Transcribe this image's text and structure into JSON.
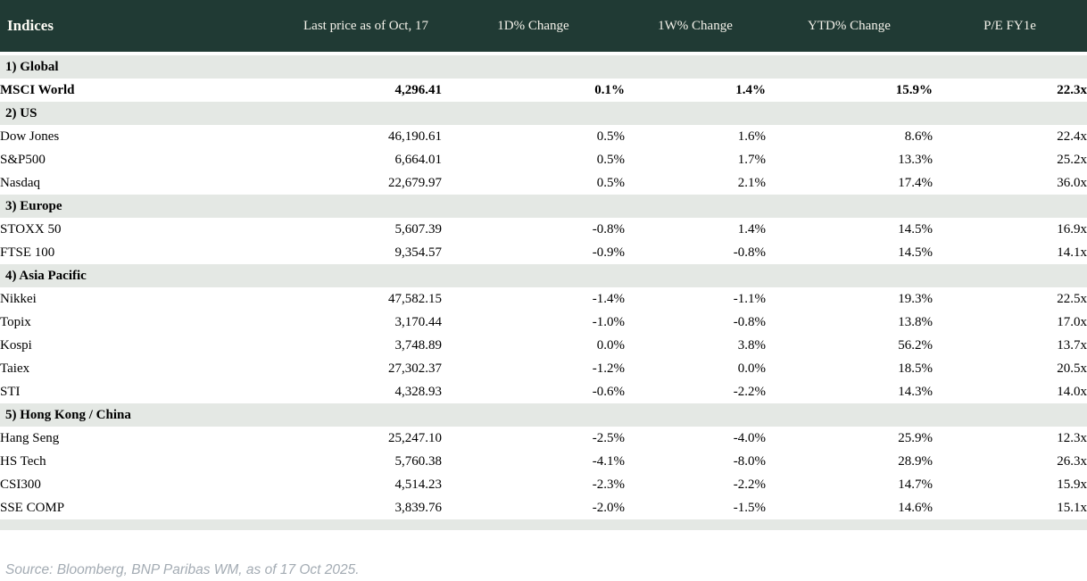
{
  "chart_data": {
    "type": "table",
    "title": "Indices",
    "columns": [
      "Indices",
      "Last price as of Oct, 17",
      "1D% Change",
      "1W% Change",
      "YTD% Change",
      "P/E FY1e"
    ],
    "sections": [
      {
        "label": "1) Global",
        "rows": [
          {
            "name": "MSCI World",
            "last_price": "4,296.41",
            "chg_1d": "0.1%",
            "chg_1w": "1.4%",
            "chg_ytd": "15.9%",
            "pe_fy1e": "22.3x",
            "bold": true
          }
        ]
      },
      {
        "label": "2) US",
        "rows": [
          {
            "name": "Dow Jones",
            "last_price": "46,190.61",
            "chg_1d": "0.5%",
            "chg_1w": "1.6%",
            "chg_ytd": "8.6%",
            "pe_fy1e": "22.4x",
            "bold": false
          },
          {
            "name": "S&P500",
            "last_price": "6,664.01",
            "chg_1d": "0.5%",
            "chg_1w": "1.7%",
            "chg_ytd": "13.3%",
            "pe_fy1e": "25.2x",
            "bold": false
          },
          {
            "name": "Nasdaq",
            "last_price": "22,679.97",
            "chg_1d": "0.5%",
            "chg_1w": "2.1%",
            "chg_ytd": "17.4%",
            "pe_fy1e": "36.0x",
            "bold": false
          }
        ]
      },
      {
        "label": "3) Europe",
        "rows": [
          {
            "name": "STOXX 50",
            "last_price": "5,607.39",
            "chg_1d": "-0.8%",
            "chg_1w": "1.4%",
            "chg_ytd": "14.5%",
            "pe_fy1e": "16.9x",
            "bold": false
          },
          {
            "name": "FTSE 100",
            "last_price": "9,354.57",
            "chg_1d": "-0.9%",
            "chg_1w": "-0.8%",
            "chg_ytd": "14.5%",
            "pe_fy1e": "14.1x",
            "bold": false
          }
        ]
      },
      {
        "label": "4) Asia Pacific",
        "rows": [
          {
            "name": "Nikkei",
            "last_price": "47,582.15",
            "chg_1d": "-1.4%",
            "chg_1w": "-1.1%",
            "chg_ytd": "19.3%",
            "pe_fy1e": "22.5x",
            "bold": false
          },
          {
            "name": "Topix",
            "last_price": "3,170.44",
            "chg_1d": "-1.0%",
            "chg_1w": "-0.8%",
            "chg_ytd": "13.8%",
            "pe_fy1e": "17.0x",
            "bold": false
          },
          {
            "name": "Kospi",
            "last_price": "3,748.89",
            "chg_1d": "0.0%",
            "chg_1w": "3.8%",
            "chg_ytd": "56.2%",
            "pe_fy1e": "13.7x",
            "bold": false
          },
          {
            "name": "Taiex",
            "last_price": "27,302.37",
            "chg_1d": "-1.2%",
            "chg_1w": "0.0%",
            "chg_ytd": "18.5%",
            "pe_fy1e": "20.5x",
            "bold": false
          },
          {
            "name": "STI",
            "last_price": "4,328.93",
            "chg_1d": "-0.6%",
            "chg_1w": "-2.2%",
            "chg_ytd": "14.3%",
            "pe_fy1e": "14.0x",
            "bold": false
          }
        ]
      },
      {
        "label": "5) Hong Kong / China",
        "rows": [
          {
            "name": "Hang Seng",
            "last_price": "25,247.10",
            "chg_1d": "-2.5%",
            "chg_1w": "-4.0%",
            "chg_ytd": "25.9%",
            "pe_fy1e": "12.3x",
            "bold": false
          },
          {
            "name": "HS Tech",
            "last_price": "5,760.38",
            "chg_1d": "-4.1%",
            "chg_1w": "-8.0%",
            "chg_ytd": "28.9%",
            "pe_fy1e": "26.3x",
            "bold": false
          },
          {
            "name": "CSI300",
            "last_price": "4,514.23",
            "chg_1d": "-2.3%",
            "chg_1w": "-2.2%",
            "chg_ytd": "14.7%",
            "pe_fy1e": "15.9x",
            "bold": false
          },
          {
            "name": "SSE COMP",
            "last_price": "3,839.76",
            "chg_1d": "-2.0%",
            "chg_1w": "-1.5%",
            "chg_ytd": "14.6%",
            "pe_fy1e": "15.1x",
            "bold": false
          }
        ]
      }
    ]
  },
  "footer": {
    "source_note": "Source: Bloomberg, BNP Paribas WM, as of 17 Oct 2025."
  },
  "colors": {
    "header_bg": "#203A34",
    "header_text": "#F4F2EA",
    "section_row_bg": "#E4E8E4",
    "positive": "#008C00",
    "negative": "#C40418",
    "source_text": "#A3ABB3"
  }
}
